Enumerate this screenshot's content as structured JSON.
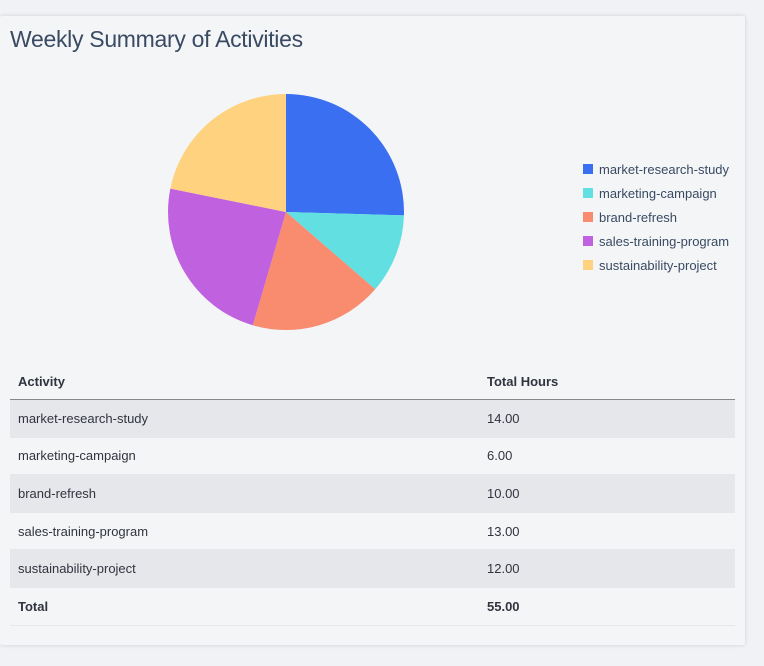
{
  "title": "Weekly Summary of Activities",
  "chart_data": {
    "type": "pie",
    "categories": [
      "market-research-study",
      "marketing-campaign",
      "brand-refresh",
      "sales-training-program",
      "sustainability-project"
    ],
    "values": [
      14,
      6,
      10,
      13,
      12
    ],
    "colors": [
      "#3a6ff2",
      "#62dfe0",
      "#f98b6e",
      "#c061e0",
      "#fed27e"
    ],
    "legend_position": "right"
  },
  "table": {
    "headers": [
      "Activity",
      "Total Hours"
    ],
    "rows": [
      [
        "market-research-study",
        "14.00"
      ],
      [
        "marketing-campaign",
        "6.00"
      ],
      [
        "brand-refresh",
        "10.00"
      ],
      [
        "sales-training-program",
        "13.00"
      ],
      [
        "sustainability-project",
        "12.00"
      ]
    ],
    "total": [
      "Total",
      "55.00"
    ]
  }
}
